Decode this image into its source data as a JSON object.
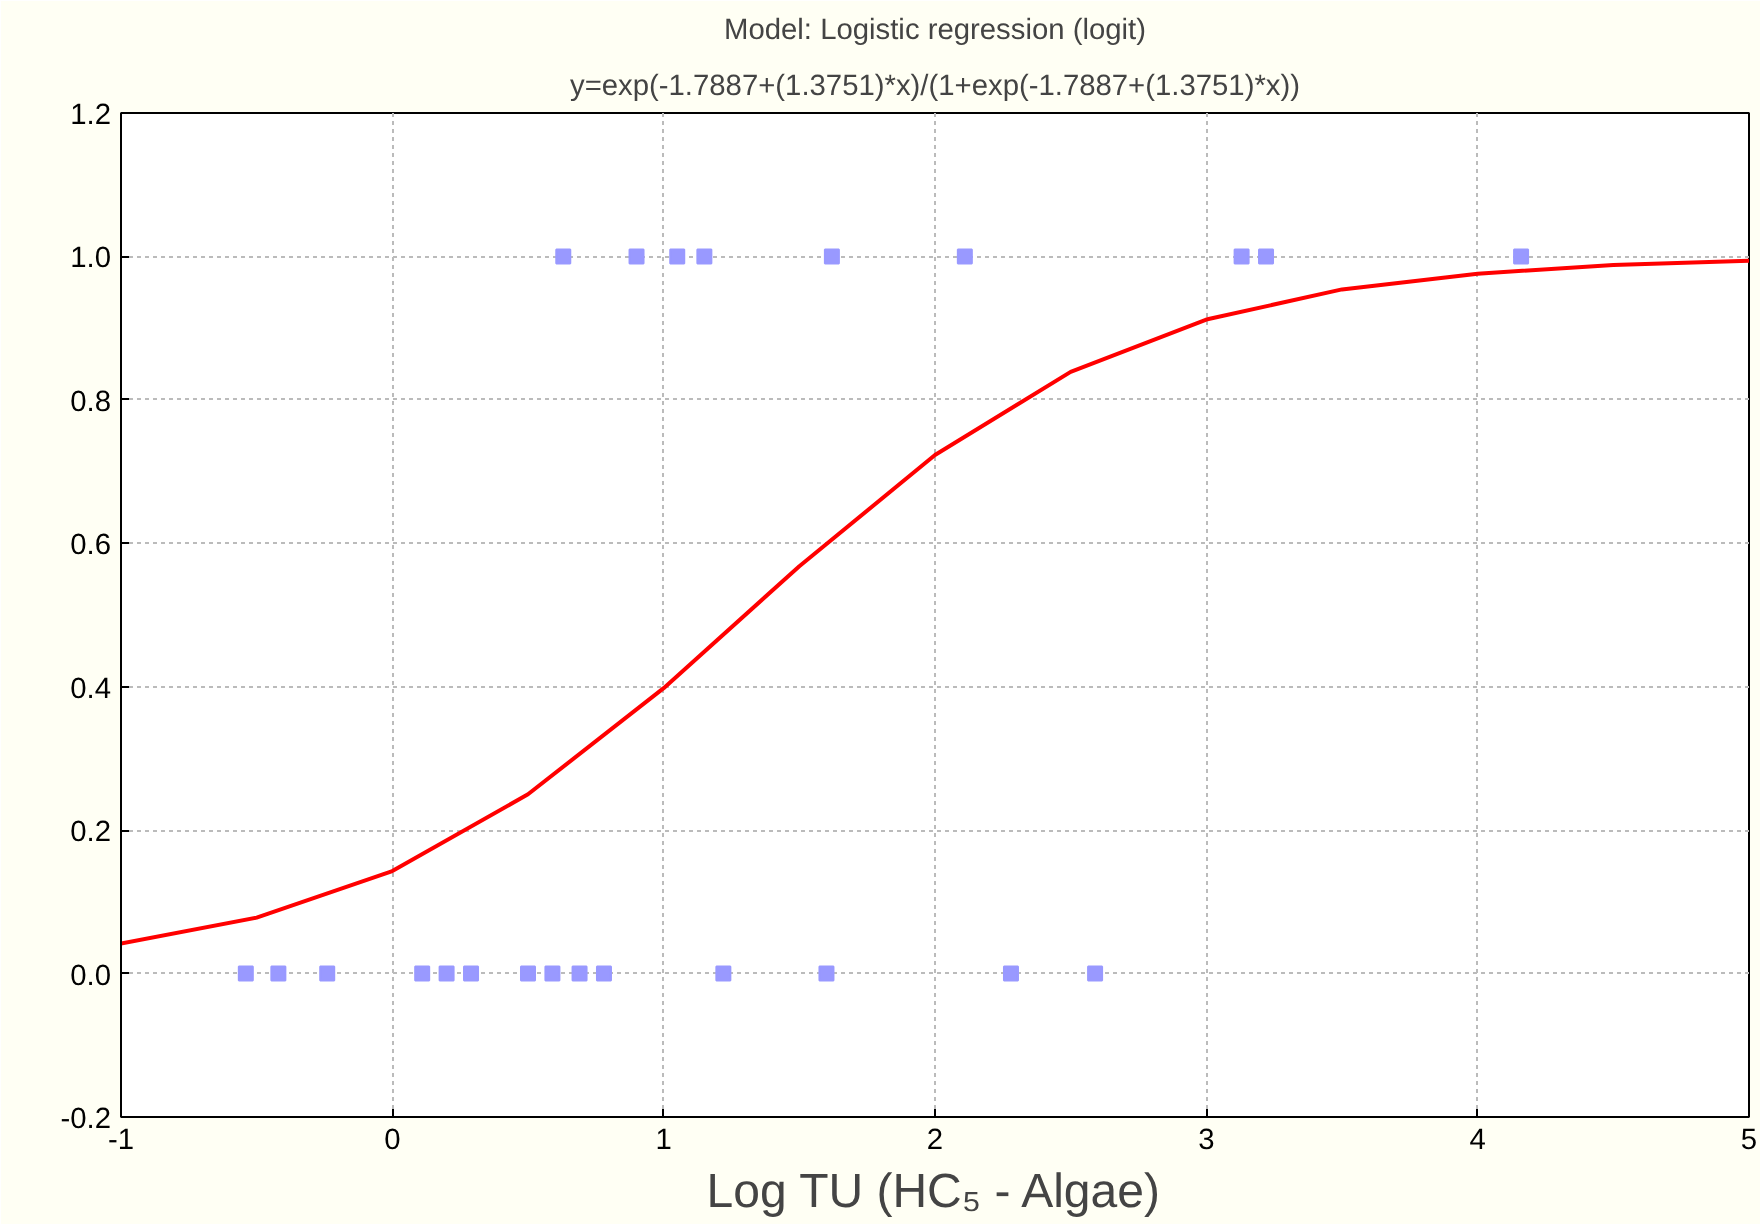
{
  "chart_data": {
    "type": "scatter",
    "title": "Model: Logistic regression (logit)",
    "subtitle": "y=exp(-1.7887+(1.3751)*x)/(1+exp(-1.7887+(1.3751)*x))",
    "xlabel": "Log TU (HC₅ - Algae)",
    "xlim": [
      -1,
      5
    ],
    "ylim": [
      -0.2,
      1.2
    ],
    "xticks": [
      -1,
      0,
      1,
      2,
      3,
      4,
      5
    ],
    "yticks": [
      {
        "value": -0.2,
        "label": "-0.2"
      },
      {
        "value": 0,
        "label": "0.0"
      },
      {
        "value": 0.2,
        "label": "0.2"
      },
      {
        "value": 0.4,
        "label": "0.4"
      },
      {
        "value": 0.6,
        "label": "0.6"
      },
      {
        "value": 0.8,
        "label": "0.8"
      },
      {
        "value": 1,
        "label": "1.0"
      },
      {
        "value": 1.2,
        "label": "1.2"
      }
    ],
    "grid": true,
    "series": [
      {
        "type": "scatter",
        "marker": "square",
        "color": "#9999ff",
        "x": [
          -0.54,
          -0.42,
          -0.24,
          0.11,
          0.2,
          0.29,
          0.5,
          0.59,
          0.69,
          0.78,
          1.22,
          1.6,
          2.28,
          2.59,
          0.63,
          0.9,
          1.05,
          1.15,
          1.62,
          2.11,
          3.13,
          3.22,
          4.16
        ],
        "values": [
          0,
          0,
          0,
          0,
          0,
          0,
          0,
          0,
          0,
          0,
          0,
          0,
          0,
          0,
          1,
          1,
          1,
          1,
          1,
          1,
          1,
          1,
          1
        ]
      },
      {
        "type": "line",
        "line_style": "solid",
        "color": "#ff0000",
        "x": [
          -1,
          -0.5,
          0,
          0.5,
          1,
          1.5,
          2,
          2.5,
          3,
          3.5,
          4,
          4.5,
          5
        ],
        "values": [
          0.042,
          0.078,
          0.143,
          0.25,
          0.398,
          0.568,
          0.723,
          0.839,
          0.912,
          0.954,
          0.976,
          0.988,
          0.994
        ]
      }
    ]
  }
}
